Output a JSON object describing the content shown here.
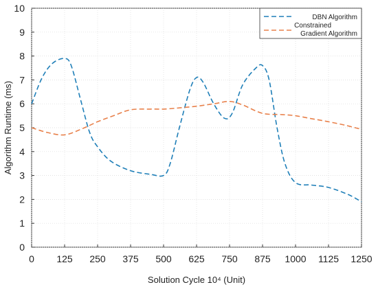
{
  "chart_data": {
    "type": "line",
    "title": "",
    "xlabel": "Solution Cycle 10⁴ (Unit)",
    "ylabel": "Algorithm Runtime (ms)",
    "xlim": [
      0,
      1250
    ],
    "ylim": [
      0,
      10
    ],
    "x_ticks": [
      0,
      125,
      250,
      375,
      500,
      625,
      750,
      875,
      1000,
      1125,
      1250
    ],
    "x_tick_labels": [
      "0",
      "125",
      "250",
      "375",
      "500",
      "625",
      "750",
      "875",
      "1000",
      "1125",
      "1250"
    ],
    "y_ticks": [
      0,
      1,
      2,
      3,
      4,
      5,
      6,
      7,
      8,
      9,
      10
    ],
    "y_tick_labels": [
      "0",
      "1",
      "2",
      "3",
      "4",
      "5",
      "6",
      "7",
      "8",
      "9",
      "10"
    ],
    "grid": true,
    "legend_position": "top-right",
    "series": [
      {
        "name": "DBN Algorithm",
        "color": "#1f7fb8",
        "dash": "dashed",
        "points": [
          [
            0,
            6.0
          ],
          [
            40,
            7.1
          ],
          [
            80,
            7.7
          ],
          [
            125,
            7.9
          ],
          [
            150,
            7.6
          ],
          [
            185,
            6.2
          ],
          [
            220,
            4.8
          ],
          [
            250,
            4.2
          ],
          [
            300,
            3.6
          ],
          [
            375,
            3.2
          ],
          [
            450,
            3.05
          ],
          [
            500,
            3.0
          ],
          [
            525,
            3.5
          ],
          [
            560,
            5.0
          ],
          [
            600,
            6.6
          ],
          [
            625,
            7.1
          ],
          [
            650,
            6.9
          ],
          [
            690,
            6.0
          ],
          [
            730,
            5.4
          ],
          [
            760,
            5.6
          ],
          [
            800,
            6.8
          ],
          [
            850,
            7.5
          ],
          [
            875,
            7.6
          ],
          [
            900,
            7.0
          ],
          [
            930,
            5.0
          ],
          [
            960,
            3.5
          ],
          [
            1000,
            2.7
          ],
          [
            1060,
            2.6
          ],
          [
            1125,
            2.5
          ],
          [
            1200,
            2.2
          ],
          [
            1250,
            1.9
          ]
        ]
      },
      {
        "name": "Constrained\nGradient Algorithm",
        "color": "#e8804a",
        "dash": "dashed",
        "points": [
          [
            0,
            5.0
          ],
          [
            60,
            4.8
          ],
          [
            125,
            4.7
          ],
          [
            190,
            4.95
          ],
          [
            250,
            5.25
          ],
          [
            310,
            5.5
          ],
          [
            375,
            5.75
          ],
          [
            450,
            5.78
          ],
          [
            500,
            5.78
          ],
          [
            560,
            5.83
          ],
          [
            625,
            5.9
          ],
          [
            690,
            6.0
          ],
          [
            750,
            6.1
          ],
          [
            800,
            5.95
          ],
          [
            875,
            5.6
          ],
          [
            950,
            5.55
          ],
          [
            1000,
            5.5
          ],
          [
            1060,
            5.38
          ],
          [
            1125,
            5.25
          ],
          [
            1190,
            5.1
          ],
          [
            1250,
            4.93
          ]
        ]
      }
    ]
  }
}
